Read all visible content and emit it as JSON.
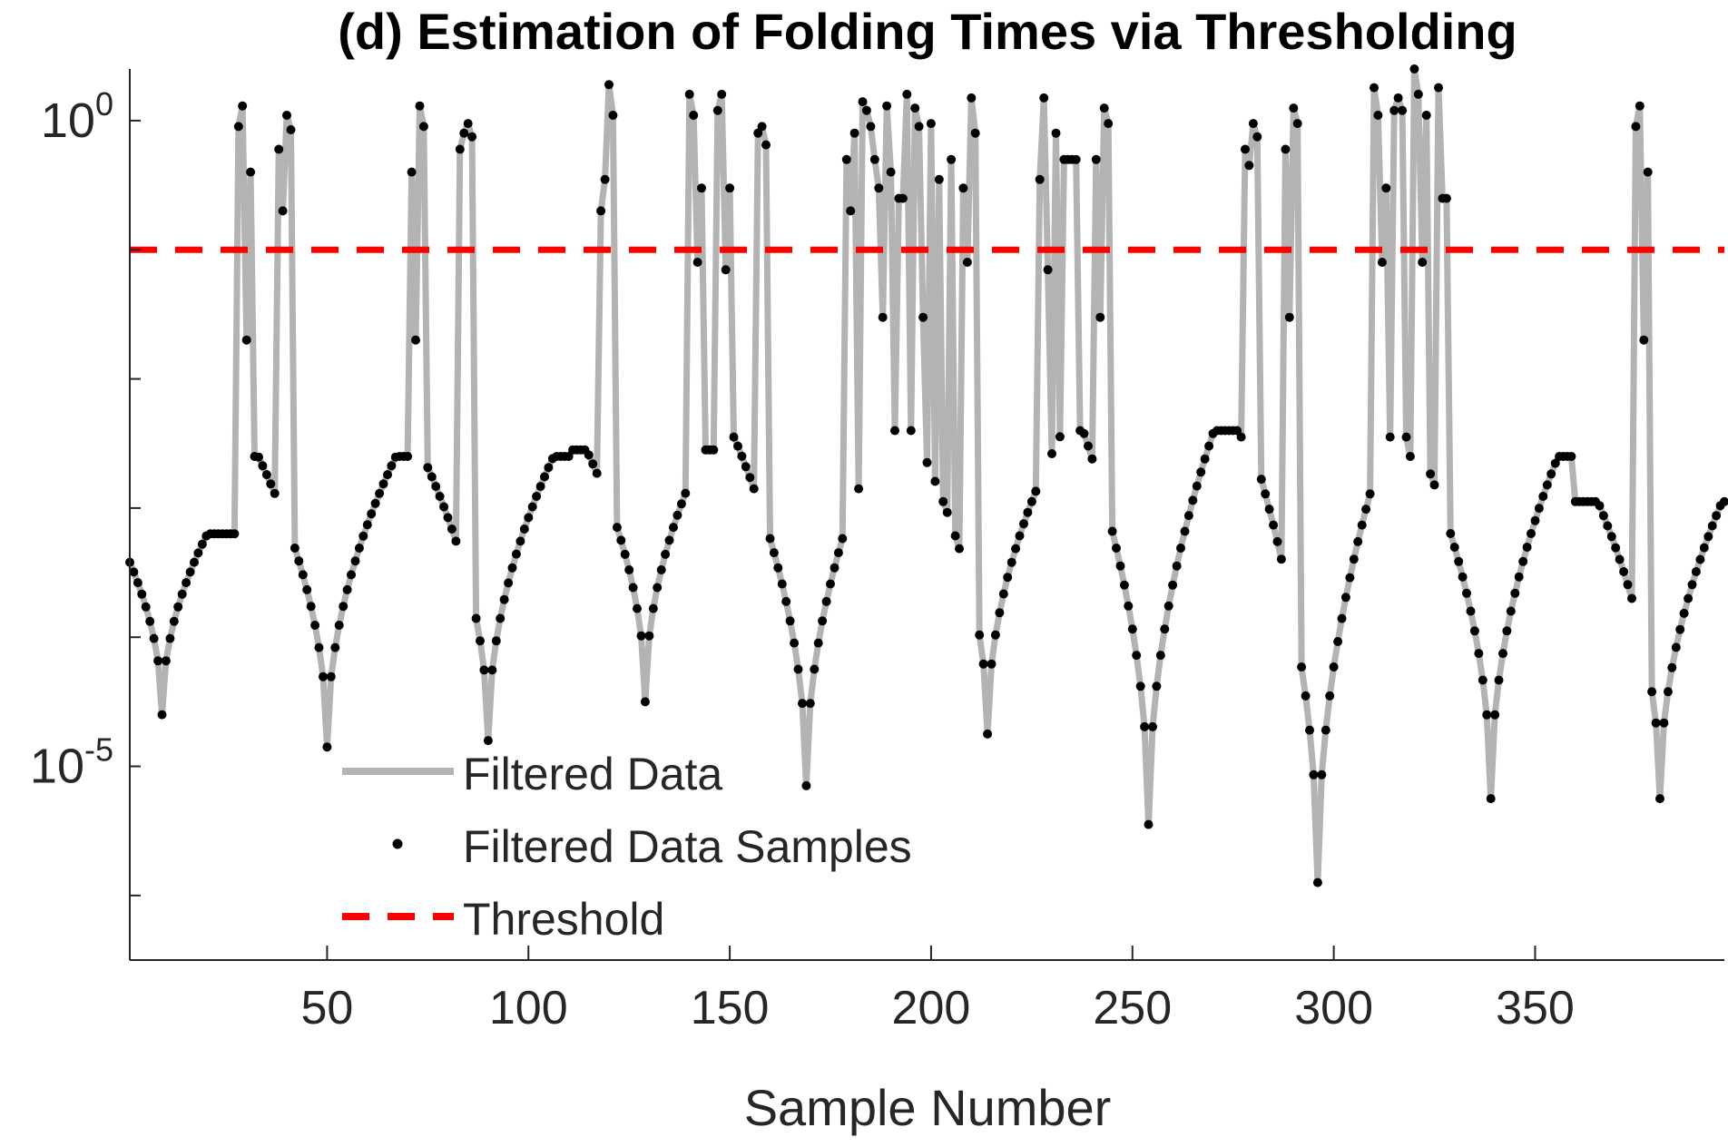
{
  "chart_data": {
    "type": "line",
    "title": "(d) Estimation of Folding Times via Thresholding",
    "xlabel": "Sample Number",
    "ylabel": "",
    "xlim": [
      1,
      397
    ],
    "ylim_log10": [
      -6.5,
      0.4
    ],
    "y_scale": "log",
    "x_ticks": [
      50,
      100,
      150,
      200,
      250,
      300,
      350
    ],
    "y_tick_labels": [
      {
        "value": 1,
        "base": "10",
        "exp": "0"
      },
      {
        "value": 1e-05,
        "base": "10",
        "exp": "-5"
      }
    ],
    "threshold_value": 0.1,
    "legend": {
      "placement": "lower-left",
      "entries": [
        "Filtered Data",
        "Filtered Data Samples",
        "Threshold"
      ]
    },
    "colors": {
      "filtered_line": "#b3b3b3",
      "samples": "#000000",
      "threshold": "#ff0000",
      "axis": "#262626"
    },
    "grid": false,
    "arches": [
      {
        "start": 1,
        "peak": 2,
        "valley": 9,
        "end": 28,
        "dipDepth": -4.6,
        "topLevel": -3.2
      },
      {
        "start": 29,
        "peak": 40,
        "valley": 50,
        "end": 70,
        "dipDepth": -4.85,
        "topLevel": -2.6
      },
      {
        "start": 71,
        "peak": 80,
        "valley": 90,
        "end": 110,
        "dipDepth": -4.8,
        "topLevel": -2.6
      },
      {
        "start": 111,
        "peak": 112,
        "valley": 129,
        "end": 146,
        "dipDepth": -4.5,
        "topLevel": -2.55
      },
      {
        "start": 147,
        "peak": 152,
        "valley": 169,
        "end": 190,
        "dipDepth": -5.15,
        "topLevel": -2.45
      },
      {
        "start": 191,
        "peak": 192,
        "valley": 214,
        "end": 236,
        "dipDepth": -4.75,
        "topLevel": -2.4
      },
      {
        "start": 237,
        "peak": 237,
        "valley": 254,
        "end": 276,
        "dipDepth": -5.45,
        "topLevel": -2.4
      },
      {
        "start": 277,
        "peak": 278,
        "valley": 296,
        "end": 318,
        "dipDepth": -5.9,
        "topLevel": -2.45
      },
      {
        "start": 319,
        "peak": 320,
        "valley": 339,
        "end": 359,
        "dipDepth": -5.25,
        "topLevel": -2.6
      },
      {
        "start": 360,
        "peak": 360,
        "valley": 381,
        "end": 397,
        "dipDepth": -5.25,
        "topLevel": -2.95
      }
    ],
    "spikes": [
      {
        "x": 28,
        "y": 0.9
      },
      {
        "x": 29,
        "y": 1.3
      },
      {
        "x": 30,
        "y": 0.02
      },
      {
        "x": 31,
        "y": 0.4
      },
      {
        "x": 38,
        "y": 0.6
      },
      {
        "x": 39,
        "y": 0.2
      },
      {
        "x": 40,
        "y": 1.1
      },
      {
        "x": 41,
        "y": 0.85
      },
      {
        "x": 71,
        "y": 0.4
      },
      {
        "x": 72,
        "y": 0.02
      },
      {
        "x": 73,
        "y": 1.3
      },
      {
        "x": 74,
        "y": 0.9
      },
      {
        "x": 83,
        "y": 0.6
      },
      {
        "x": 84,
        "y": 0.8
      },
      {
        "x": 85,
        "y": 0.95
      },
      {
        "x": 86,
        "y": 0.75
      },
      {
        "x": 118,
        "y": 0.2
      },
      {
        "x": 119,
        "y": 0.35
      },
      {
        "x": 120,
        "y": 1.9
      },
      {
        "x": 121,
        "y": 1.1
      },
      {
        "x": 140,
        "y": 1.6
      },
      {
        "x": 141,
        "y": 1.1
      },
      {
        "x": 142,
        "y": 0.08
      },
      {
        "x": 143,
        "y": 0.3
      },
      {
        "x": 147,
        "y": 1.2
      },
      {
        "x": 148,
        "y": 1.6
      },
      {
        "x": 149,
        "y": 0.07
      },
      {
        "x": 150,
        "y": 0.3
      },
      {
        "x": 157,
        "y": 0.8
      },
      {
        "x": 158,
        "y": 0.9
      },
      {
        "x": 159,
        "y": 0.65
      },
      {
        "x": 179,
        "y": 0.5
      },
      {
        "x": 180,
        "y": 0.2
      },
      {
        "x": 181,
        "y": 0.8
      },
      {
        "x": 183,
        "y": 1.4
      },
      {
        "x": 184,
        "y": 1.2
      },
      {
        "x": 185,
        "y": 0.9
      },
      {
        "x": 186,
        "y": 0.5
      },
      {
        "x": 187,
        "y": 0.3
      },
      {
        "x": 188,
        "y": 0.03
      },
      {
        "x": 189,
        "y": 1.3
      },
      {
        "x": 190,
        "y": 0.4
      },
      {
        "x": 192,
        "y": 0.25
      },
      {
        "x": 193,
        "y": 0.25
      },
      {
        "x": 194,
        "y": 1.6
      },
      {
        "x": 196,
        "y": 1.25
      },
      {
        "x": 197,
        "y": 0.9
      },
      {
        "x": 198,
        "y": 0.03
      },
      {
        "x": 200,
        "y": 0.95
      },
      {
        "x": 202,
        "y": 0.35
      },
      {
        "x": 205,
        "y": 0.5
      },
      {
        "x": 208,
        "y": 0.3
      },
      {
        "x": 209,
        "y": 0.08
      },
      {
        "x": 210,
        "y": 1.5
      },
      {
        "x": 211,
        "y": 0.8
      },
      {
        "x": 227,
        "y": 0.35
      },
      {
        "x": 228,
        "y": 1.5
      },
      {
        "x": 229,
        "y": 0.07
      },
      {
        "x": 231,
        "y": 0.8
      },
      {
        "x": 233,
        "y": 0.5
      },
      {
        "x": 234,
        "y": 0.5
      },
      {
        "x": 235,
        "y": 0.5
      },
      {
        "x": 236,
        "y": 0.5
      },
      {
        "x": 241,
        "y": 0.5
      },
      {
        "x": 242,
        "y": 0.03
      },
      {
        "x": 243,
        "y": 1.25
      },
      {
        "x": 244,
        "y": 0.95
      },
      {
        "x": 278,
        "y": 0.6
      },
      {
        "x": 279,
        "y": 0.45
      },
      {
        "x": 280,
        "y": 0.95
      },
      {
        "x": 281,
        "y": 0.75
      },
      {
        "x": 288,
        "y": 0.6
      },
      {
        "x": 289,
        "y": 0.03
      },
      {
        "x": 290,
        "y": 1.25
      },
      {
        "x": 291,
        "y": 0.95
      },
      {
        "x": 310,
        "y": 1.8
      },
      {
        "x": 311,
        "y": 1.1
      },
      {
        "x": 312,
        "y": 0.08
      },
      {
        "x": 313,
        "y": 0.3
      },
      {
        "x": 315,
        "y": 1.2
      },
      {
        "x": 316,
        "y": 1.5
      },
      {
        "x": 317,
        "y": 1.2
      },
      {
        "x": 320,
        "y": 2.6
      },
      {
        "x": 321,
        "y": 1.6
      },
      {
        "x": 322,
        "y": 0.08
      },
      {
        "x": 323,
        "y": 1.1
      },
      {
        "x": 326,
        "y": 1.8
      },
      {
        "x": 327,
        "y": 0.25
      },
      {
        "x": 328,
        "y": 0.25
      },
      {
        "x": 375,
        "y": 0.9
      },
      {
        "x": 376,
        "y": 1.3
      },
      {
        "x": 377,
        "y": 0.02
      },
      {
        "x": 378,
        "y": 0.4
      }
    ]
  }
}
